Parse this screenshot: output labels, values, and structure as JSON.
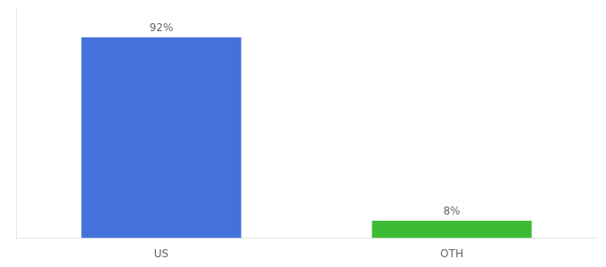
{
  "chart_data": {
    "type": "bar",
    "categories": [
      "US",
      "OTH"
    ],
    "values": [
      92,
      8
    ],
    "colors": [
      "#4472db",
      "#3dbb35"
    ],
    "value_labels": [
      "92%",
      "8%"
    ],
    "data_labels": true,
    "ylim": [
      0,
      105
    ],
    "tick_labels": "x",
    "grid": false
  }
}
